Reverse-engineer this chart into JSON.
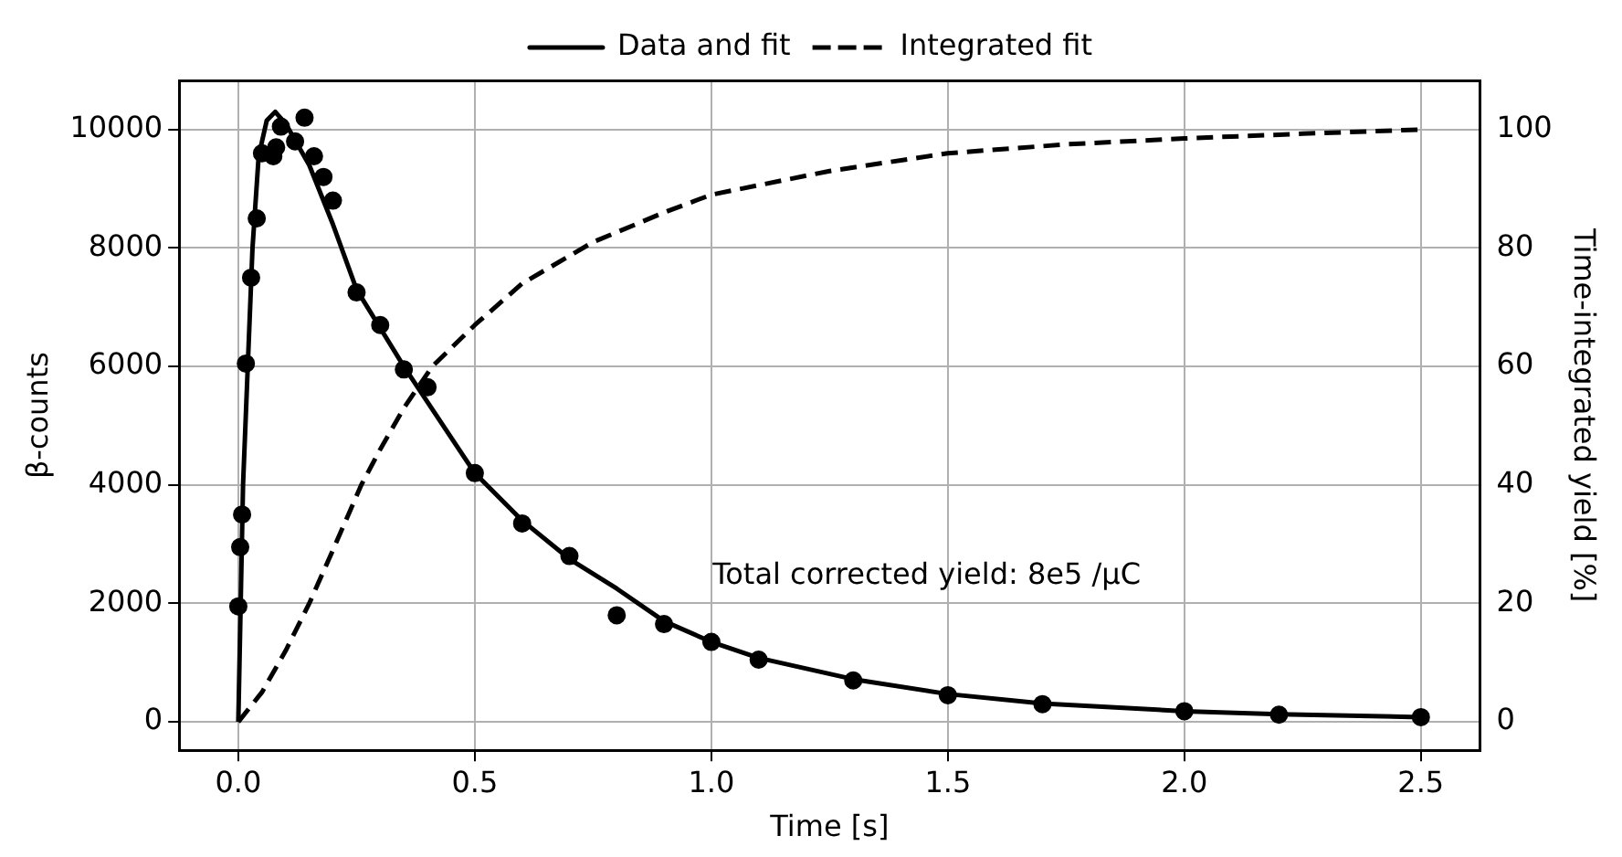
{
  "chart_data": {
    "type": "line",
    "xlabel": "Time [s]",
    "ylabel": "β-counts",
    "y2label": "Time-integrated yield [%]",
    "xlim": [
      -0.125,
      2.625
    ],
    "xticks": [
      {
        "value": 0,
        "label": "0.0"
      },
      0.5,
      {
        "value": 1,
        "label": "1.0"
      },
      1.5,
      {
        "value": 2,
        "label": "2.0"
      },
      2.5
    ],
    "ylim": [
      -480,
      10830
    ],
    "yticks": [
      0,
      2000,
      4000,
      6000,
      8000,
      10000
    ],
    "y2lim": [
      -4.8,
      108.3
    ],
    "y2ticks": [
      0,
      20,
      40,
      60,
      80,
      100
    ],
    "grid": true,
    "legend": "top",
    "annotations": [
      "Total corrected yield: 8e5 /μC"
    ],
    "series": [
      {
        "type": "scatter",
        "marker": "circle",
        "color": "#000000",
        "x": [
          0.0,
          0.004,
          0.008,
          0.016,
          0.027,
          0.039,
          0.05,
          0.074,
          0.08,
          0.09,
          0.12,
          0.14,
          0.16,
          0.18,
          0.2,
          0.25,
          0.3,
          0.35,
          0.4,
          0.5,
          0.6,
          0.7,
          0.8,
          0.9,
          1.0,
          1.1,
          1.3,
          1.5,
          1.7,
          2.0,
          2.2,
          2.5
        ],
        "values": [
          1950,
          2950,
          3500,
          6050,
          7500,
          8500,
          9600,
          9550,
          9700,
          10050,
          9800,
          10200,
          9550,
          9200,
          8800,
          7250,
          6700,
          5950,
          5650,
          4200,
          3350,
          2800,
          1800,
          1650,
          1350,
          1050,
          700,
          450,
          300,
          180,
          120,
          80
        ]
      },
      {
        "name": "Data and fit",
        "line_style": "solid",
        "color": "#000000",
        "x": [
          0,
          0.005,
          0.01,
          0.02,
          0.03,
          0.043,
          0.06,
          0.078,
          0.1,
          0.15,
          0.2,
          0.25,
          0.3,
          0.35,
          0.4,
          0.5,
          0.6,
          0.7,
          0.8,
          0.9,
          1.0,
          1.1,
          1.3,
          1.5,
          1.7,
          2.0,
          2.2,
          2.5
        ],
        "values": [
          0,
          2000,
          4000,
          6000,
          8000,
          9550,
          10150,
          10300,
          10100,
          9400,
          8400,
          7300,
          6650,
          6000,
          5400,
          4200,
          3400,
          2750,
          2250,
          1700,
          1350,
          1080,
          720,
          470,
          310,
          180,
          130,
          80
        ]
      },
      {
        "name": "Integrated fit",
        "axis": "y2",
        "line_style": "dashed",
        "color": "#000000",
        "x": [
          0,
          0.05,
          0.1,
          0.15,
          0.2,
          0.26,
          0.3,
          0.35,
          0.41,
          0.5,
          0.6,
          0.75,
          0.9,
          1.0,
          1.25,
          1.5,
          1.75,
          2.0,
          2.25,
          2.5
        ],
        "values": [
          0,
          5,
          12,
          20,
          29,
          40,
          46,
          53,
          60,
          67,
          74,
          81,
          86,
          89,
          93,
          96,
          97.5,
          98.5,
          99.3,
          100
        ]
      }
    ]
  }
}
